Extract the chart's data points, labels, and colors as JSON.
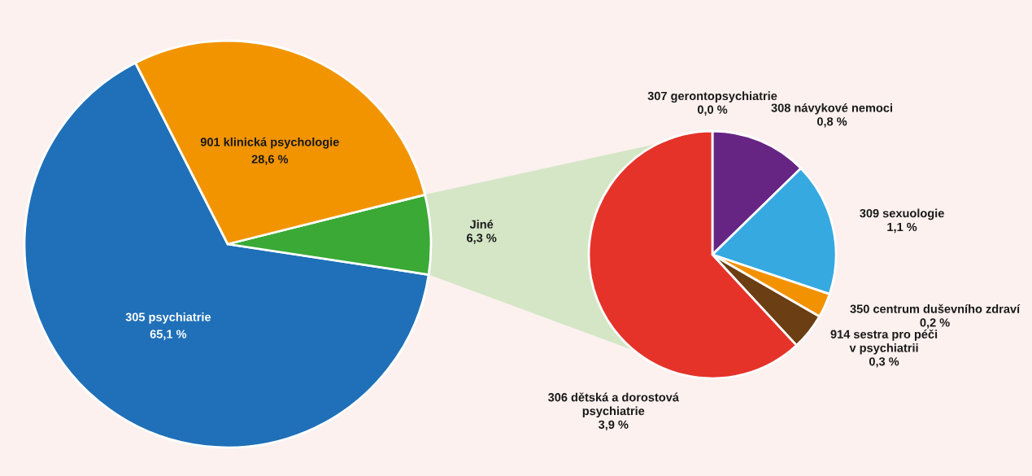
{
  "chart_data": [
    {
      "type": "pie",
      "categories": [
        "305 psychiatrie",
        "Jiné",
        "901 klinická psychologie"
      ],
      "values": [
        65.1,
        6.3,
        28.6
      ],
      "colors": [
        "#1f70b8",
        "#3aa935",
        "#f29400"
      ],
      "value_labels": [
        "65,1 %",
        "6,3 %",
        "28,6 %"
      ]
    },
    {
      "type": "pie",
      "categories": [
        "307 gerontopsychiatrie",
        "308 návykové nemoci",
        "309 sexuologie",
        "350 centrum duševního zdraví",
        "914 sestra pro péči\nv psychiatrii",
        "306 dětská a dorostová\npsychiatrie"
      ],
      "values": [
        0.0,
        0.8,
        1.1,
        0.2,
        0.3,
        3.9
      ],
      "colors": [
        "#1f70b8",
        "#662483",
        "#36a9e1",
        "#f39200",
        "#6b3e14",
        "#e5332a"
      ],
      "value_labels": [
        "0,0 %",
        "0,8 %",
        "1,1 %",
        "0,2 %",
        "0,3 %",
        "3,9 %"
      ]
    }
  ]
}
